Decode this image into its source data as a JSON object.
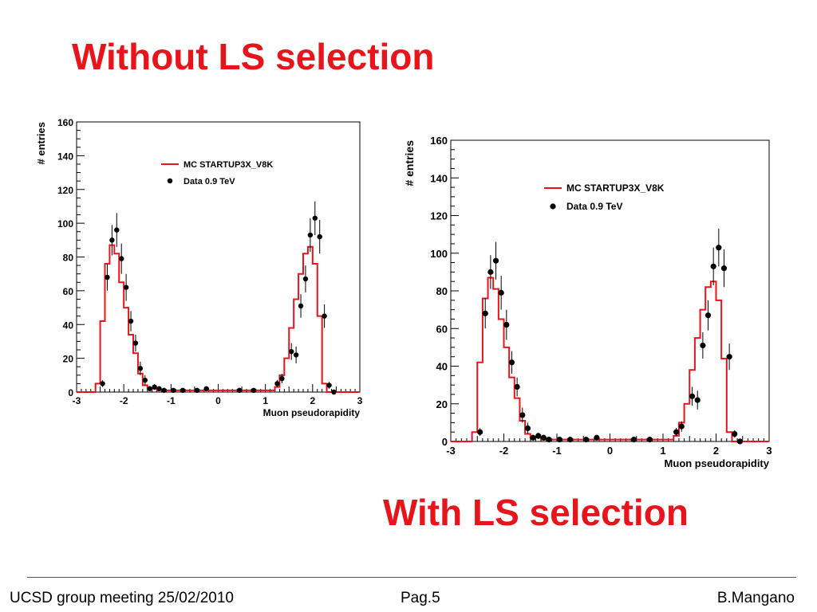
{
  "slide": {
    "title_top": "Without LS selection",
    "title_bottom": "With LS selection",
    "footer_left": "UCSD group meeting 25/02/2010",
    "footer_center": "Pag.5",
    "footer_right": "B.Mangano"
  },
  "colors": {
    "title": "#e8141c",
    "mc": "#e8141c",
    "data": "#000000"
  },
  "chart_data": [
    {
      "type": "histogram",
      "xlabel": "Muon pseudorapidity",
      "ylabel": "# entries",
      "xlim": [
        -3,
        3
      ],
      "ylim": [
        0,
        160
      ],
      "xticks": [
        -3,
        -2,
        -1,
        0,
        1,
        2,
        3
      ],
      "yticks": [
        0,
        20,
        40,
        60,
        80,
        100,
        120,
        140,
        160
      ],
      "legend": {
        "position": "top-center",
        "entries": [
          "MC STARTUP3X_V8K",
          "Data 0.9 TeV"
        ]
      },
      "series": [
        {
          "name": "MC STARTUP3X_V8K",
          "kind": "step",
          "edges": [
            -3,
            -2.8,
            -2.6,
            -2.5,
            -2.4,
            -2.3,
            -2.2,
            -2.1,
            -2,
            -1.9,
            -1.8,
            -1.7,
            -1.6,
            -1.5,
            -1.4,
            -1.3,
            -1.2,
            -1.1,
            -1,
            -0.9,
            -0.8,
            -0.7,
            -0.6,
            -0.5,
            -0.4,
            -0.3,
            -0.2,
            -0.1,
            0,
            0.1,
            0.2,
            0.3,
            0.4,
            0.5,
            0.6,
            0.7,
            0.8,
            0.9,
            1,
            1.1,
            1.2,
            1.3,
            1.4,
            1.5,
            1.6,
            1.7,
            1.8,
            1.9,
            2,
            2.1,
            2.2,
            2.3,
            2.4,
            2.5,
            2.6,
            2.8,
            3
          ],
          "values": [
            0,
            0,
            5,
            42,
            76,
            87,
            82,
            65,
            50,
            34,
            23,
            11,
            4,
            2,
            2,
            1,
            1,
            1,
            1,
            1,
            1,
            1,
            1,
            1,
            1,
            1,
            1,
            1,
            1,
            1,
            1,
            1,
            1,
            1,
            1,
            1,
            1,
            1,
            1,
            1,
            3,
            10,
            20,
            38,
            55,
            70,
            82,
            86,
            76,
            45,
            5,
            0,
            0,
            0,
            0,
            0
          ]
        },
        {
          "name": "Data 0.9 TeV",
          "kind": "points",
          "x": [
            -2.45,
            -2.35,
            -2.25,
            -2.15,
            -2.05,
            -1.95,
            -1.85,
            -1.75,
            -1.65,
            -1.55,
            -1.45,
            -1.35,
            -1.25,
            -1.15,
            -0.95,
            -0.75,
            -0.45,
            -0.25,
            0.45,
            0.75,
            1.25,
            1.35,
            1.55,
            1.65,
            1.75,
            1.85,
            1.95,
            2.05,
            2.15,
            2.25,
            2.35,
            2.45
          ],
          "y": [
            5,
            68,
            90,
            96,
            79,
            62,
            42,
            29,
            14,
            7,
            2,
            3,
            2,
            1,
            1,
            1,
            1,
            2,
            1,
            1,
            5,
            8,
            24,
            22,
            51,
            67,
            93,
            103,
            92,
            45,
            4,
            0
          ],
          "err": [
            2,
            8,
            9,
            10,
            9,
            8,
            6,
            5,
            4,
            3,
            1.5,
            1.7,
            1.5,
            1,
            1,
            1,
            1,
            1.4,
            1,
            1,
            2.2,
            2.8,
            5,
            5,
            7,
            8,
            10,
            10,
            10,
            7,
            2,
            0
          ]
        }
      ]
    },
    {
      "type": "histogram",
      "xlabel": "Muon pseudorapidity",
      "ylabel": "# entries",
      "xlim": [
        -3,
        3
      ],
      "ylim": [
        0,
        160
      ],
      "xticks": [
        -3,
        -2,
        -1,
        0,
        1,
        2,
        3
      ],
      "yticks": [
        0,
        20,
        40,
        60,
        80,
        100,
        120,
        140,
        160
      ],
      "legend": {
        "position": "top-center",
        "entries": [
          "MC STARTUP3X_V8K",
          "Data 0.9 TeV"
        ]
      },
      "series": [
        {
          "name": "MC STARTUP3X_V8K",
          "kind": "step",
          "edges": [
            -3,
            -2.8,
            -2.6,
            -2.5,
            -2.4,
            -2.3,
            -2.2,
            -2.1,
            -2,
            -1.9,
            -1.8,
            -1.7,
            -1.6,
            -1.5,
            -1.4,
            -1.3,
            -1.2,
            -1.1,
            -1,
            -0.9,
            -0.8,
            -0.7,
            -0.6,
            -0.5,
            -0.4,
            -0.3,
            -0.2,
            -0.1,
            0,
            0.1,
            0.2,
            0.3,
            0.4,
            0.5,
            0.6,
            0.7,
            0.8,
            0.9,
            1,
            1.1,
            1.2,
            1.3,
            1.4,
            1.5,
            1.6,
            1.7,
            1.8,
            1.9,
            2,
            2.1,
            2.2,
            2.3,
            2.4,
            2.5,
            2.6,
            2.8,
            3
          ],
          "values": [
            0,
            0,
            5,
            42,
            76,
            87,
            81,
            65,
            50,
            34,
            23,
            11,
            4,
            2,
            2,
            1,
            1,
            1,
            1,
            1,
            1,
            1,
            1,
            1,
            1,
            1,
            1,
            1,
            1,
            1,
            1,
            1,
            1,
            1,
            1,
            1,
            1,
            1,
            1,
            1,
            3,
            10,
            20,
            38,
            55,
            70,
            82,
            85,
            75,
            44,
            5,
            0,
            0,
            0,
            0,
            0
          ]
        },
        {
          "name": "Data 0.9 TeV",
          "kind": "points",
          "x": [
            -2.45,
            -2.35,
            -2.25,
            -2.15,
            -2.05,
            -1.95,
            -1.85,
            -1.75,
            -1.65,
            -1.55,
            -1.45,
            -1.35,
            -1.25,
            -1.15,
            -0.95,
            -0.75,
            -0.45,
            -0.25,
            0.45,
            0.75,
            1.25,
            1.35,
            1.55,
            1.65,
            1.75,
            1.85,
            1.95,
            2.05,
            2.15,
            2.25,
            2.35,
            2.45
          ],
          "y": [
            5,
            68,
            90,
            96,
            79,
            62,
            42,
            29,
            14,
            7,
            2,
            3,
            2,
            1,
            1,
            1,
            1,
            2,
            1,
            1,
            5,
            8,
            24,
            22,
            51,
            67,
            93,
            103,
            92,
            45,
            4,
            0
          ],
          "err": [
            2,
            8,
            9,
            10,
            9,
            8,
            6,
            5,
            4,
            3,
            1.5,
            1.7,
            1.5,
            1,
            1,
            1,
            1,
            1.4,
            1,
            1,
            2.2,
            2.8,
            5,
            5,
            7,
            8,
            10,
            10,
            10,
            7,
            2,
            0
          ]
        }
      ]
    }
  ]
}
